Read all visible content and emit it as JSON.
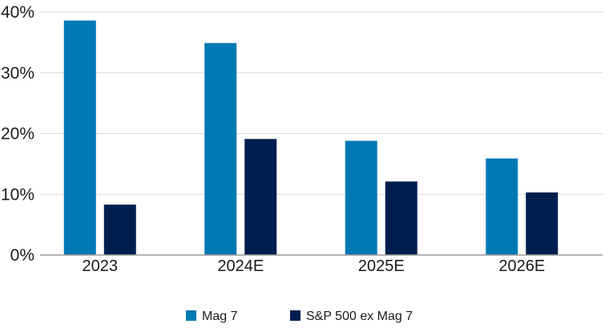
{
  "chart_data": {
    "type": "bar",
    "categories": [
      "2023",
      "2024E",
      "2025E",
      "2026E"
    ],
    "series": [
      {
        "name": "Mag 7",
        "values": [
          38.6,
          34.9,
          18.8,
          15.9
        ],
        "color": "#0079b5"
      },
      {
        "name": "S&P 500 ex Mag 7",
        "values": [
          8.3,
          19.1,
          12.1,
          10.3
        ],
        "color": "#001f4f"
      }
    ],
    "title": "",
    "xlabel": "",
    "ylabel": "",
    "ylim": [
      0,
      40
    ],
    "yticks": [
      "0%",
      "10%",
      "20%",
      "30%",
      "40%"
    ],
    "grid": true,
    "legend_position": "bottom-center"
  }
}
